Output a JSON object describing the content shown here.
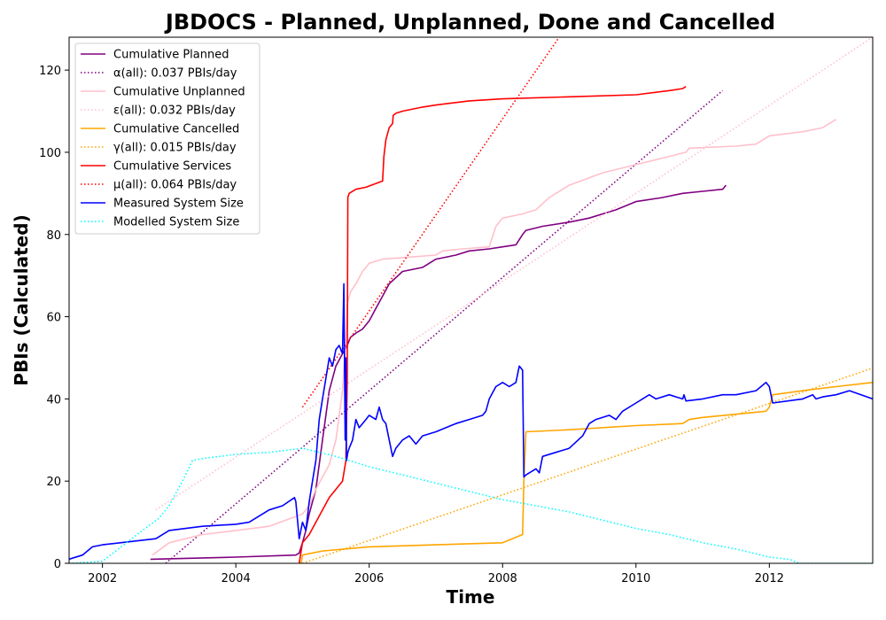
{
  "chart_data": {
    "type": "line",
    "title": "JBDOCS - Planned, Unplanned, Done  and Cancelled",
    "xlabel": "Time",
    "ylabel": "PBIs (Calculated)",
    "xlim": [
      2001.5,
      2013.55
    ],
    "ylim": [
      0,
      128
    ],
    "xticks": [
      "2002",
      "2004",
      "2006",
      "2008",
      "2010",
      "2012"
    ],
    "yticks": [
      "0",
      "20",
      "40",
      "60",
      "80",
      "100",
      "120"
    ],
    "grid": false,
    "legend_position": "top-left",
    "series": [
      {
        "name": "Cumulative Planned",
        "color": "#800080",
        "style": "solid",
        "x": [
          2002.72,
          2004.0,
          2004.9,
          2004.95,
          2005.0,
          2005.05,
          2005.1,
          2005.2,
          2005.3,
          2005.4,
          2005.5,
          2005.6,
          2005.67,
          2005.72,
          2005.8,
          2005.9,
          2006.0,
          2006.1,
          2006.2,
          2006.3,
          2006.5,
          2006.8,
          2007.0,
          2007.3,
          2007.5,
          2007.8,
          2008.0,
          2008.2,
          2008.3,
          2008.35,
          2008.6,
          2009.0,
          2009.3,
          2009.7,
          2009.85,
          2010.0,
          2010.4,
          2010.7,
          2011.0,
          2011.3,
          2011.35
        ],
        "y": [
          1,
          1.5,
          2,
          2.5,
          5,
          8,
          12,
          18,
          30,
          42,
          48,
          51,
          53,
          55,
          56,
          57,
          59,
          62,
          65,
          68,
          71,
          72,
          74,
          75,
          76,
          76.5,
          77,
          77.5,
          80,
          81,
          82,
          83,
          84,
          86,
          87,
          88,
          89,
          90,
          90.5,
          91,
          92
        ]
      },
      {
        "name": "α(all): 0.037 PBIs/day",
        "color": "#800080",
        "style": "dotted",
        "x": [
          2002.95,
          2011.3
        ],
        "y": [
          0,
          115
        ]
      },
      {
        "name": "Cumulative Unplanned",
        "color": "#ffc0cb",
        "style": "solid",
        "x": [
          2002.75,
          2003.0,
          2003.5,
          2004.0,
          2004.5,
          2005.0,
          2005.1,
          2005.2,
          2005.4,
          2005.5,
          2005.6,
          2005.65,
          2005.67,
          2005.72,
          2005.8,
          2005.9,
          2006.0,
          2006.2,
          2006.6,
          2007.0,
          2007.1,
          2007.4,
          2007.8,
          2007.9,
          2008.0,
          2008.3,
          2008.5,
          2008.7,
          2009.0,
          2009.5,
          2010.0,
          2010.5,
          2010.75,
          2010.8,
          2011.5,
          2011.8,
          2012.0,
          2012.5,
          2012.8,
          2013.0
        ],
        "y": [
          2,
          5,
          7,
          8,
          9,
          12,
          14,
          18,
          24,
          30,
          42,
          55,
          63,
          66,
          68,
          71,
          73,
          74,
          74.5,
          75,
          76,
          76.5,
          77,
          82,
          84,
          85,
          86,
          89,
          92,
          95,
          97,
          99,
          100,
          101,
          101.5,
          102,
          104,
          105,
          106,
          108
        ]
      },
      {
        "name": "ε(all): 0.032 PBIs/day",
        "color": "#ffc0cb",
        "style": "dotted",
        "x": [
          2002.8,
          2013.55
        ],
        "y": [
          13,
          128
        ]
      },
      {
        "name": "Cumulative Cancelled",
        "color": "#ffa500",
        "style": "solid",
        "x": [
          2004.98,
          2005.0,
          2005.05,
          2005.3,
          2006.0,
          2007.0,
          2008.0,
          2008.3,
          2008.32,
          2008.35,
          2009.0,
          2010.0,
          2010.7,
          2010.8,
          2011.0,
          2011.95,
          2012.0,
          2012.05,
          2012.5,
          2013.0,
          2013.55
        ],
        "y": [
          0,
          2,
          2.2,
          3,
          4,
          4.5,
          5,
          7,
          20,
          32,
          32.5,
          33.5,
          34,
          35,
          35.5,
          37,
          38,
          41,
          42,
          43,
          44
        ]
      },
      {
        "name": "γ(all): 0.015 PBIs/day",
        "color": "#ffa500",
        "style": "dotted",
        "x": [
          2005.0,
          2013.55
        ],
        "y": [
          0,
          47.5
        ]
      },
      {
        "name": "Cumulative Services",
        "color": "#ff0000",
        "style": "solid",
        "x": [
          2004.95,
          2005.0,
          2005.1,
          2005.2,
          2005.3,
          2005.4,
          2005.5,
          2005.6,
          2005.65,
          2005.67,
          2005.68,
          2005.7,
          2005.8,
          2005.95,
          2006.2,
          2006.22,
          2006.25,
          2006.3,
          2006.35,
          2006.36,
          2006.4,
          2006.5,
          2006.8,
          2007.0,
          2007.5,
          2008.0,
          2009.0,
          2010.0,
          2010.5,
          2010.7,
          2010.75
        ],
        "y": [
          0,
          5,
          7,
          10,
          13,
          16,
          18,
          20,
          25,
          45,
          89,
          90,
          91,
          91.5,
          93,
          99,
          103,
          106,
          107,
          109,
          109.5,
          110,
          111,
          111.5,
          112.5,
          113,
          113.5,
          114,
          115,
          115.5,
          116
        ]
      },
      {
        "name": "μ(all): 0.064 PBIs/day",
        "color": "#ff0000",
        "style": "dotted",
        "x": [
          2005.0,
          2008.85
        ],
        "y": [
          38,
          128
        ]
      },
      {
        "name": "Measured System Size",
        "color": "#0000ff",
        "style": "solid",
        "x": [
          2001.5,
          2001.7,
          2001.85,
          2002.0,
          2002.8,
          2003.0,
          2003.5,
          2004.0,
          2004.2,
          2004.5,
          2004.7,
          2004.88,
          2004.9,
          2004.95,
          2005.0,
          2005.05,
          2005.1,
          2005.15,
          2005.2,
          2005.25,
          2005.3,
          2005.35,
          2005.4,
          2005.45,
          2005.5,
          2005.55,
          2005.6,
          2005.62,
          2005.64,
          2005.65,
          2005.66,
          2005.68,
          2005.7,
          2005.75,
          2005.8,
          2005.85,
          2005.9,
          2005.95,
          2006.0,
          2006.1,
          2006.15,
          2006.2,
          2006.25,
          2006.3,
          2006.35,
          2006.4,
          2006.5,
          2006.6,
          2006.7,
          2006.8,
          2007.0,
          2007.3,
          2007.5,
          2007.7,
          2007.75,
          2007.8,
          2007.9,
          2008.0,
          2008.1,
          2008.2,
          2008.25,
          2008.3,
          2008.32,
          2008.35,
          2008.5,
          2008.55,
          2008.6,
          2008.8,
          2009.0,
          2009.2,
          2009.3,
          2009.4,
          2009.6,
          2009.7,
          2009.8,
          2010.0,
          2010.2,
          2010.3,
          2010.5,
          2010.6,
          2010.7,
          2010.72,
          2010.75,
          2011.0,
          2011.3,
          2011.5,
          2011.8,
          2011.95,
          2012.0,
          2012.05,
          2012.5,
          2012.65,
          2012.7,
          2012.8,
          2013.0,
          2013.2,
          2013.55
        ],
        "y": [
          1,
          2,
          4,
          4.5,
          6,
          8,
          9,
          9.5,
          10,
          13,
          14,
          16,
          15,
          6,
          10,
          8,
          15,
          20,
          25,
          35,
          40,
          45,
          50,
          48,
          52,
          53,
          51,
          68,
          30,
          50,
          25,
          27,
          28,
          30,
          35,
          33,
          34,
          35,
          36,
          35,
          38,
          35,
          34,
          30,
          26,
          28,
          30,
          31,
          29,
          31,
          32,
          34,
          35,
          36,
          37,
          40,
          43,
          44,
          43,
          44,
          48,
          47,
          21,
          21.5,
          23,
          22,
          26,
          27,
          28,
          31,
          34,
          35,
          36,
          35,
          37,
          39,
          41,
          40,
          41,
          40.5,
          40,
          41,
          39.5,
          40,
          41,
          41,
          42,
          44,
          43,
          39,
          40,
          41,
          40,
          40.5,
          41,
          42,
          40
        ]
      },
      {
        "name": "Modelled System Size",
        "color": "#00ffff",
        "style": "dotted",
        "x": [
          2001.5,
          2002.0,
          2002.2,
          2002.6,
          2002.85,
          2003.0,
          2003.2,
          2003.35,
          2003.5,
          2004.0,
          2004.5,
          2005.0,
          2005.5,
          2006.0,
          2006.5,
          2007.0,
          2007.5,
          2008.0,
          2008.5,
          2009.0,
          2009.5,
          2010.0,
          2010.5,
          2011.0,
          2011.5,
          2012.0,
          2012.3,
          2012.45,
          2013.0,
          2013.55
        ],
        "y": [
          0,
          0.5,
          3,
          8,
          11,
          14,
          20,
          25,
          25.5,
          26.5,
          27,
          28,
          26,
          23.5,
          21.5,
          19.5,
          17.5,
          15.5,
          14,
          12.5,
          10.5,
          8.5,
          7,
          5,
          3.5,
          1.5,
          1,
          0,
          0,
          0
        ]
      }
    ]
  }
}
